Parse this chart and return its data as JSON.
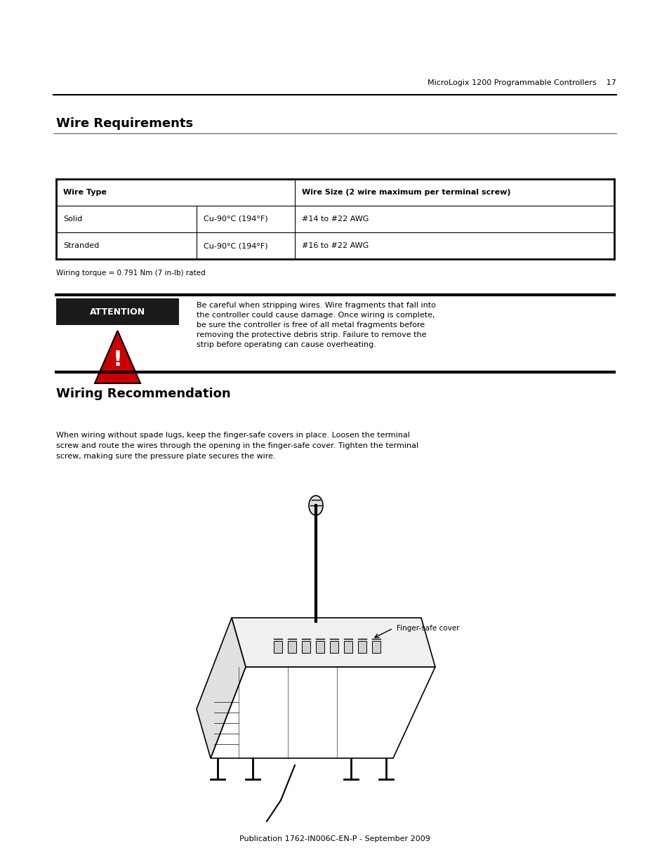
{
  "page_width": 9.54,
  "page_height": 12.35,
  "bg_color": "#ffffff",
  "header_text": "MicroLogix 1200 Programmable Controllers",
  "header_page": "17",
  "footer_text": "Publication 1762-IN006C-EN-P - September 2009",
  "section1_title": "Wire Requirements",
  "table_headers": [
    "Wire Type",
    "Wire Size (2 wire maximum per terminal screw)"
  ],
  "table_col1": [
    "Solid",
    "Stranded"
  ],
  "table_col2": [
    "Cu-90°C (194°F)",
    "Cu-90°C (194°F)"
  ],
  "table_col3": [
    "#14 to #22 AWG",
    "#16 to #22 AWG"
  ],
  "table_note": "Wiring torque = 0.791 Nm (7 in-lb) rated",
  "attention_label": "ATTENTION",
  "attention_text": "Be careful when stripping wires. Wire fragments that fall into\nthe controller could cause damage. Once wiring is complete,\nbe sure the controller is free of all metal fragments before\nremoving the protective debris strip. Failure to remove the\nstrip before operating can cause overheating.",
  "section2_title": "Wiring Recommendation",
  "wiring_text": "When wiring without spade lugs, keep the finger-safe covers in place. Loosen the terminal\nscrew and route the wires through the opening in the finger-safe cover. Tighten the terminal\nscrew, making sure the pressure plate secures the wire.",
  "finger_safe_label": "Finger-safe cover",
  "colors": {
    "black": "#000000",
    "white": "#ffffff",
    "red": "#cc0000",
    "dark_gray": "#333333",
    "light_gray": "#dddddd",
    "header_line": "#000000",
    "table_border": "#000000",
    "attention_bg": "#1a1a1a"
  }
}
